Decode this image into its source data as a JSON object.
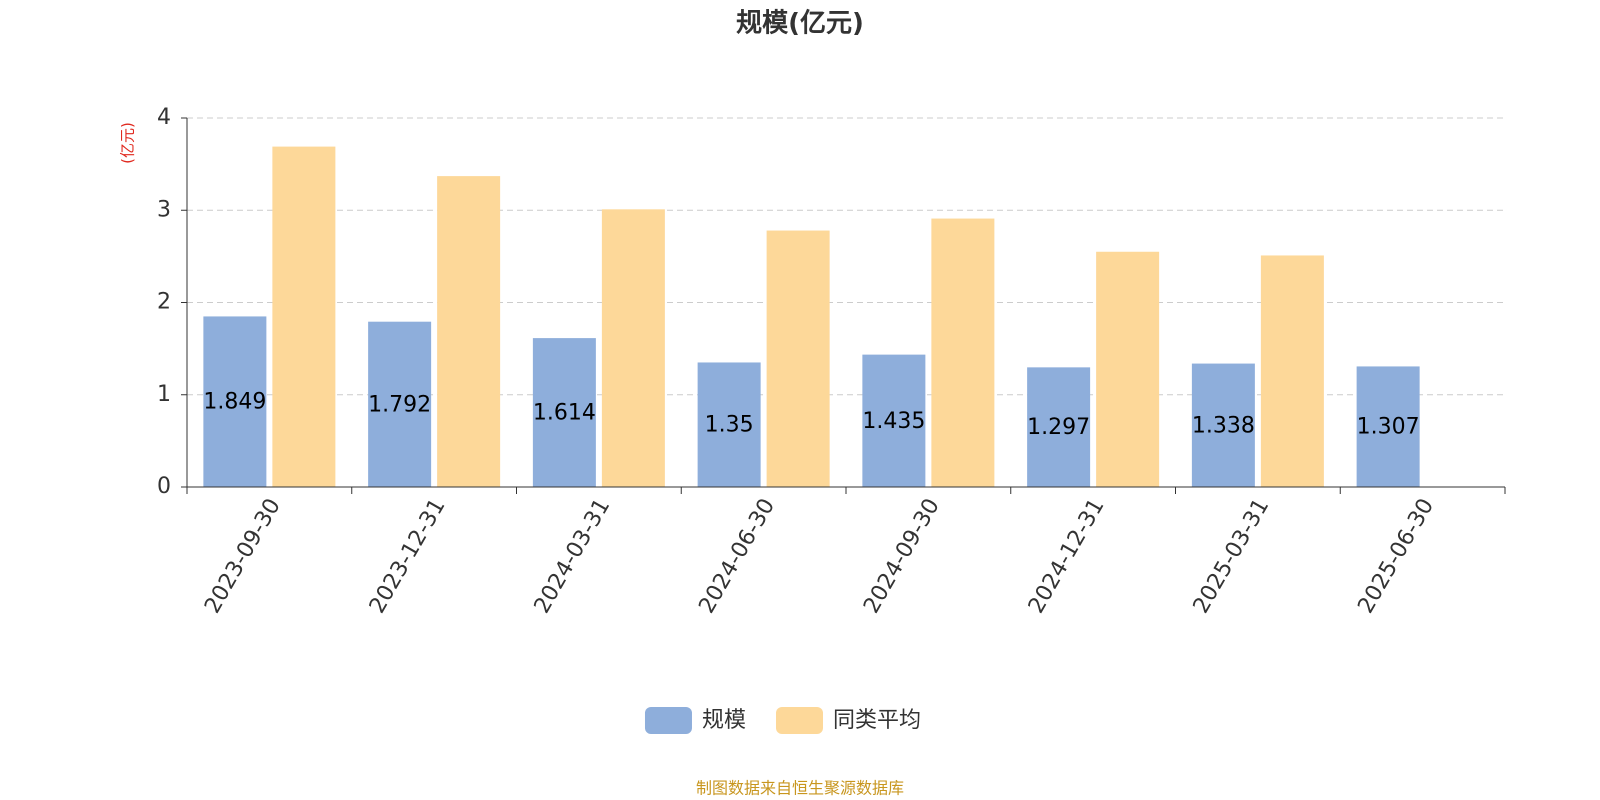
{
  "chart_data": {
    "type": "bar",
    "title": "规模(亿元)",
    "y_axis_label": "(亿元)",
    "categories": [
      "2023-09-30",
      "2023-12-31",
      "2024-03-31",
      "2024-06-30",
      "2024-09-30",
      "2024-12-31",
      "2025-03-31",
      "2025-06-30"
    ],
    "series": [
      {
        "name": "规模",
        "color": "#8eaedb",
        "show_labels": true,
        "values": [
          1.849,
          1.792,
          1.614,
          1.35,
          1.435,
          1.297,
          1.338,
          1.307
        ]
      },
      {
        "name": "同类平均",
        "color": "#fdd899",
        "show_labels": false,
        "values": [
          3.69,
          3.37,
          3.01,
          2.78,
          2.91,
          2.55,
          2.51,
          null
        ]
      }
    ],
    "ylim": [
      0,
      4
    ],
    "yticks": [
      0,
      1,
      2,
      3,
      4
    ],
    "grid": true,
    "source": "制图数据来自恒生聚源数据库"
  }
}
